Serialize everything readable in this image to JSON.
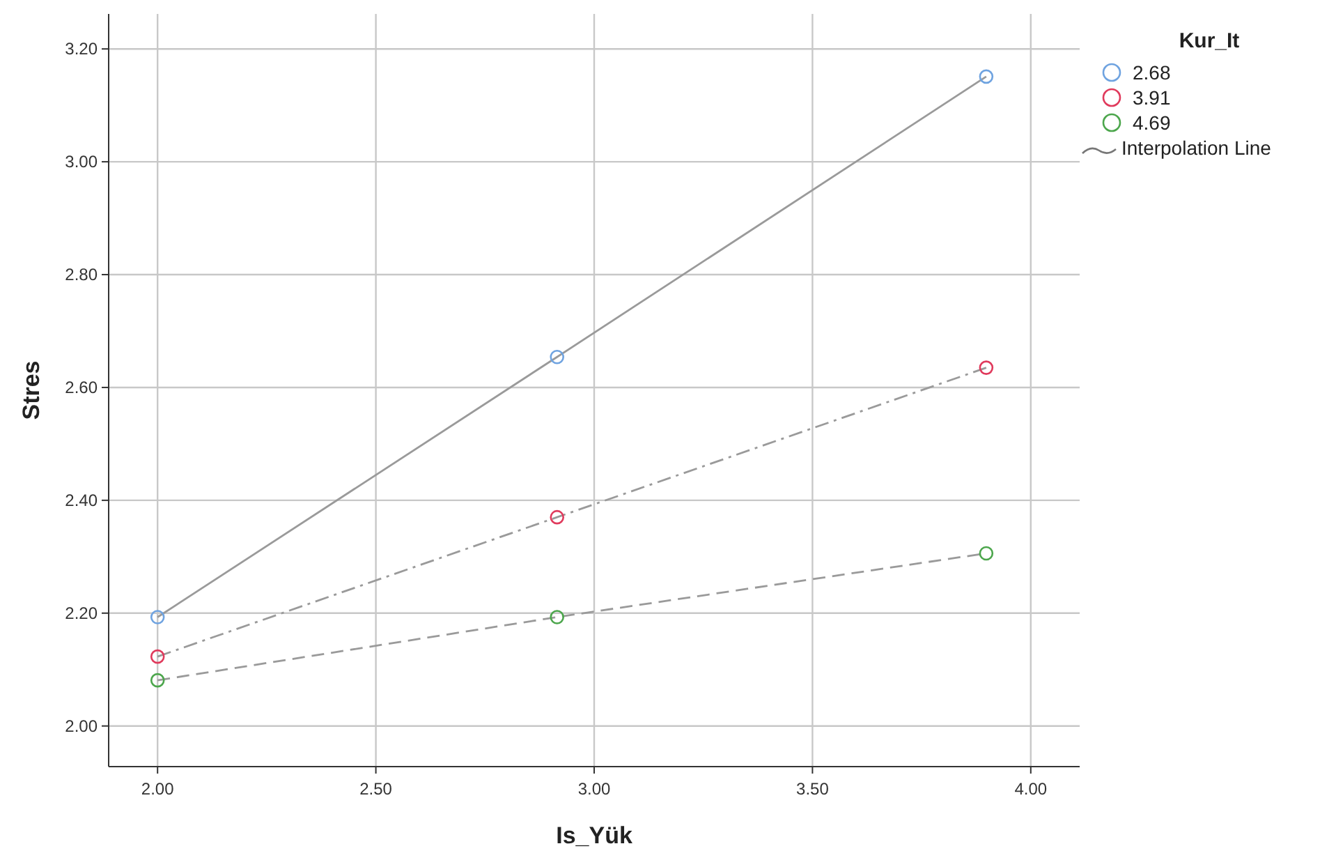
{
  "chart_data": {
    "type": "line",
    "xlabel": "Is_Yük",
    "ylabel": "Stres",
    "legend_title": "Kur_It",
    "legend": "right",
    "grid": true,
    "marker": "circle",
    "xlim": [
      1.888,
      4.112
    ],
    "ylim": [
      1.928,
      3.262
    ],
    "xticks": [
      {
        "value": 2,
        "label": "2.00"
      },
      {
        "value": 2.5,
        "label": "2.50"
      },
      {
        "value": 3,
        "label": "3.00"
      },
      {
        "value": 3.5,
        "label": "3.50"
      },
      {
        "value": 4,
        "label": "4.00"
      }
    ],
    "yticks": [
      {
        "value": 2,
        "label": "2.00"
      },
      {
        "value": 2.2,
        "label": "2.20"
      },
      {
        "value": 2.4,
        "label": "2.40"
      },
      {
        "value": 2.6,
        "label": "2.60"
      },
      {
        "value": 2.8,
        "label": "2.80"
      },
      {
        "value": 3,
        "label": "3.00"
      },
      {
        "value": 3.2,
        "label": "3.20"
      }
    ],
    "x": [
      2.0,
      2.915,
      3.898
    ],
    "series": [
      {
        "name": "2.68",
        "color": "#6fa3e0",
        "line_style": "solid",
        "values": [
          2.193,
          2.654,
          3.151
        ]
      },
      {
        "name": "3.91",
        "color": "#e03a5c",
        "line_style": "dashdot",
        "values": [
          2.123,
          2.37,
          2.635
        ]
      },
      {
        "name": "4.69",
        "color": "#4ca64c",
        "line_style": "dashed",
        "values": [
          2.081,
          2.193,
          2.306
        ]
      }
    ],
    "annotations": [
      "Interpolation Line"
    ]
  }
}
